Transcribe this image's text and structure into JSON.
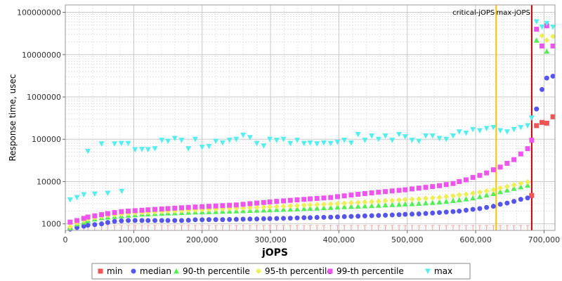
{
  "chart_data": {
    "type": "scatter",
    "xlabel": "jOPS",
    "ylabel": "Response time, usec",
    "xlim": [
      0,
      716000
    ],
    "ylim": [
      700,
      150000000
    ],
    "y_scale": "log",
    "grid": true,
    "legend_position": "bottom",
    "x_ticks": [
      {
        "value": 0,
        "label": "0"
      },
      {
        "value": 100000,
        "label": "100,000"
      },
      {
        "value": 200000,
        "label": "200,000"
      },
      {
        "value": 300000,
        "label": "300,000"
      },
      {
        "value": 400000,
        "label": "400,000"
      },
      {
        "value": 500000,
        "label": "500,000"
      },
      {
        "value": 600000,
        "label": "600,000"
      },
      {
        "value": 700000,
        "label": "700,000"
      }
    ],
    "y_ticks": [
      {
        "value": 1000,
        "label": "1000"
      },
      {
        "value": 10000,
        "label": "10000"
      },
      {
        "value": 100000,
        "label": "100000"
      },
      {
        "value": 1000000,
        "label": "1000000"
      },
      {
        "value": 10000000,
        "label": "10000000"
      },
      {
        "value": 100000000,
        "label": "100000000"
      }
    ],
    "vertical_lines": [
      {
        "name": "critical-jOPS",
        "x": 630000,
        "color": "#ffc000"
      },
      {
        "name": "max-jOPS",
        "x": 682000,
        "color": "#cc0000"
      }
    ],
    "x": [
      7000,
      17000,
      27000,
      33000,
      43000,
      53000,
      62000,
      72000,
      82000,
      92000,
      102000,
      112000,
      121000,
      131000,
      141000,
      150000,
      160000,
      170000,
      180000,
      190000,
      200000,
      210000,
      220000,
      230000,
      240000,
      250000,
      260000,
      270000,
      280000,
      290000,
      299000,
      309000,
      319000,
      329000,
      339000,
      349000,
      358000,
      368000,
      378000,
      388000,
      398000,
      408000,
      418000,
      428000,
      438000,
      448000,
      458000,
      468000,
      478000,
      488000,
      497000,
      507000,
      517000,
      527000,
      537000,
      547000,
      557000,
      567000,
      576000,
      586000,
      596000,
      606000,
      616000,
      626000,
      636000,
      646000,
      656000,
      666000,
      676000
    ],
    "series": [
      {
        "name": "min",
        "color": "#ee5555",
        "marker": "square",
        "points": [
          [
            682000,
            4700
          ],
          [
            689000,
            210000
          ],
          [
            697000,
            250000
          ],
          [
            704000,
            240000
          ],
          [
            713000,
            340000
          ]
        ]
      },
      {
        "name": "median",
        "color": "#5555ee",
        "marker": "circle",
        "values": [
          750,
          820,
          880,
          930,
          960,
          1000,
          1080,
          1150,
          1180,
          1200,
          1200,
          1200,
          1200,
          1200,
          1200,
          1200,
          1200,
          1200,
          1220,
          1250,
          1250,
          1260,
          1260,
          1260,
          1270,
          1280,
          1290,
          1300,
          1300,
          1320,
          1330,
          1340,
          1350,
          1360,
          1380,
          1400,
          1400,
          1420,
          1430,
          1440,
          1460,
          1480,
          1500,
          1520,
          1540,
          1560,
          1580,
          1600,
          1620,
          1650,
          1680,
          1700,
          1720,
          1760,
          1800,
          1850,
          1900,
          1950,
          2000,
          2100,
          2200,
          2300,
          2450,
          2600,
          2900,
          3100,
          3400,
          3800,
          4100
        ],
        "extra_points": [
          [
            689000,
            520000
          ],
          [
            697000,
            1500000
          ],
          [
            704000,
            2800000
          ],
          [
            713000,
            3100000
          ]
        ]
      },
      {
        "name": "90-th percentile",
        "color": "#55ee55",
        "marker": "triangle-up",
        "values": [
          800,
          1000,
          1100,
          1200,
          1300,
          1400,
          1450,
          1500,
          1550,
          1600,
          1650,
          1700,
          1720,
          1750,
          1780,
          1800,
          1820,
          1850,
          1880,
          1900,
          1920,
          1940,
          1960,
          1980,
          2000,
          2020,
          2050,
          2080,
          2100,
          2120,
          2150,
          2180,
          2200,
          2230,
          2260,
          2300,
          2330,
          2360,
          2400,
          2450,
          2500,
          2540,
          2580,
          2620,
          2660,
          2700,
          2750,
          2800,
          2850,
          2900,
          2950,
          3000,
          3060,
          3120,
          3200,
          3300,
          3400,
          3550,
          3700,
          3900,
          4100,
          4400,
          4800,
          5200,
          5800,
          6300,
          6900,
          7500,
          8200
        ],
        "extra_points": [
          [
            689000,
            22000000
          ],
          [
            697000,
            16000000
          ],
          [
            704000,
            12000000
          ],
          [
            713000,
            16000000
          ]
        ]
      },
      {
        "name": "95-th percentile",
        "color": "#eeee55",
        "marker": "diamond",
        "values": [
          850,
          1050,
          1200,
          1300,
          1400,
          1500,
          1600,
          1650,
          1700,
          1750,
          1800,
          1850,
          1880,
          1900,
          1950,
          2000,
          2020,
          2050,
          2100,
          2130,
          2160,
          2200,
          2230,
          2260,
          2300,
          2330,
          2360,
          2400,
          2440,
          2480,
          2520,
          2560,
          2600,
          2650,
          2700,
          2750,
          2800,
          2850,
          2900,
          2950,
          3000,
          3070,
          3140,
          3210,
          3280,
          3350,
          3420,
          3500,
          3580,
          3660,
          3740,
          3820,
          3900,
          4000,
          4100,
          4200,
          4400,
          4600,
          4800,
          5000,
          5300,
          5600,
          6000,
          6400,
          7000,
          7600,
          8300,
          9100,
          9800
        ],
        "extra_points": [
          [
            689000,
            40000000
          ],
          [
            697000,
            28000000
          ],
          [
            704000,
            22000000
          ],
          [
            713000,
            27000000
          ]
        ]
      },
      {
        "name": "99-th percentile",
        "color": "#ee55ee",
        "marker": "square",
        "values": [
          1100,
          1200,
          1350,
          1450,
          1550,
          1650,
          1750,
          1850,
          1950,
          2000,
          2050,
          2100,
          2150,
          2200,
          2250,
          2300,
          2350,
          2400,
          2450,
          2500,
          2550,
          2600,
          2650,
          2700,
          2750,
          2800,
          2900,
          3000,
          3100,
          3200,
          3300,
          3400,
          3500,
          3600,
          3700,
          3800,
          3900,
          4000,
          4100,
          4200,
          4400,
          4600,
          4800,
          5000,
          5200,
          5400,
          5600,
          5800,
          6000,
          6200,
          6400,
          6700,
          7000,
          7300,
          7600,
          8000,
          8500,
          9000,
          10000,
          11000,
          12500,
          14000,
          16000,
          19000,
          22000,
          27000,
          33000,
          45000,
          60000
        ],
        "extra_points": [
          [
            682000,
            95000
          ],
          [
            689000,
            40000000
          ],
          [
            697000,
            16000000
          ],
          [
            704000,
            48000000
          ],
          [
            713000,
            16000000
          ]
        ]
      },
      {
        "name": "max",
        "color": "#55eeee",
        "marker": "triangle-down",
        "points": [
          [
            7000,
            3700
          ],
          [
            17000,
            4200
          ],
          [
            27000,
            4900
          ],
          [
            33000,
            52000
          ],
          [
            43000,
            5100
          ],
          [
            53000,
            78000
          ],
          [
            62000,
            5300
          ],
          [
            72000,
            78000
          ],
          [
            82000,
            80000
          ],
          [
            82500,
            5900
          ],
          [
            92000,
            80000
          ],
          [
            102000,
            57000
          ],
          [
            112000,
            58000
          ],
          [
            121000,
            57000
          ],
          [
            131000,
            60000
          ],
          [
            141000,
            95000
          ],
          [
            150000,
            90000
          ],
          [
            160000,
            105000
          ],
          [
            170000,
            95000
          ],
          [
            180000,
            60000
          ],
          [
            190000,
            100000
          ],
          [
            200000,
            65000
          ],
          [
            210000,
            68000
          ],
          [
            220000,
            90000
          ],
          [
            230000,
            82000
          ],
          [
            240000,
            95000
          ],
          [
            250000,
            100000
          ],
          [
            260000,
            125000
          ],
          [
            270000,
            110000
          ],
          [
            280000,
            80000
          ],
          [
            290000,
            70000
          ],
          [
            299000,
            100000
          ],
          [
            309000,
            95000
          ],
          [
            319000,
            100000
          ],
          [
            329000,
            80000
          ],
          [
            339000,
            95000
          ],
          [
            349000,
            80000
          ],
          [
            358000,
            82000
          ],
          [
            368000,
            78000
          ],
          [
            378000,
            82000
          ],
          [
            388000,
            80000
          ],
          [
            398000,
            85000
          ],
          [
            408000,
            95000
          ],
          [
            418000,
            82000
          ],
          [
            428000,
            130000
          ],
          [
            438000,
            95000
          ],
          [
            448000,
            120000
          ],
          [
            458000,
            100000
          ],
          [
            468000,
            120000
          ],
          [
            478000,
            95000
          ],
          [
            488000,
            130000
          ],
          [
            497000,
            115000
          ],
          [
            507000,
            95000
          ],
          [
            517000,
            90000
          ],
          [
            527000,
            120000
          ],
          [
            537000,
            120000
          ],
          [
            547000,
            105000
          ],
          [
            557000,
            100000
          ],
          [
            567000,
            120000
          ],
          [
            576000,
            150000
          ],
          [
            586000,
            140000
          ],
          [
            596000,
            170000
          ],
          [
            606000,
            160000
          ],
          [
            616000,
            180000
          ],
          [
            626000,
            190000
          ],
          [
            636000,
            160000
          ],
          [
            646000,
            150000
          ],
          [
            656000,
            170000
          ],
          [
            666000,
            190000
          ],
          [
            676000,
            210000
          ],
          [
            682000,
            320000
          ],
          [
            689000,
            60000000
          ],
          [
            697000,
            45000000
          ],
          [
            704000,
            55000000
          ],
          [
            713000,
            45000000
          ]
        ]
      }
    ],
    "min_markers_x": [
      7000,
      17000,
      27000,
      33000,
      43000,
      53000,
      62000,
      72000,
      82000,
      92000,
      102000,
      112000,
      121000,
      131000,
      141000,
      150000,
      160000,
      170000,
      180000,
      190000,
      200000,
      210000,
      220000,
      230000,
      240000,
      250000,
      260000,
      270000,
      280000,
      290000,
      299000,
      309000,
      319000,
      329000,
      339000,
      349000,
      358000,
      368000,
      378000,
      388000,
      398000,
      408000,
      418000,
      428000,
      438000,
      448000,
      458000,
      468000,
      478000,
      488000,
      497000,
      507000,
      517000,
      527000,
      537000,
      547000,
      557000,
      567000,
      576000,
      586000,
      596000,
      606000,
      616000,
      626000,
      636000,
      646000,
      656000,
      666000,
      676000
    ],
    "min_markers_value": 700
  }
}
